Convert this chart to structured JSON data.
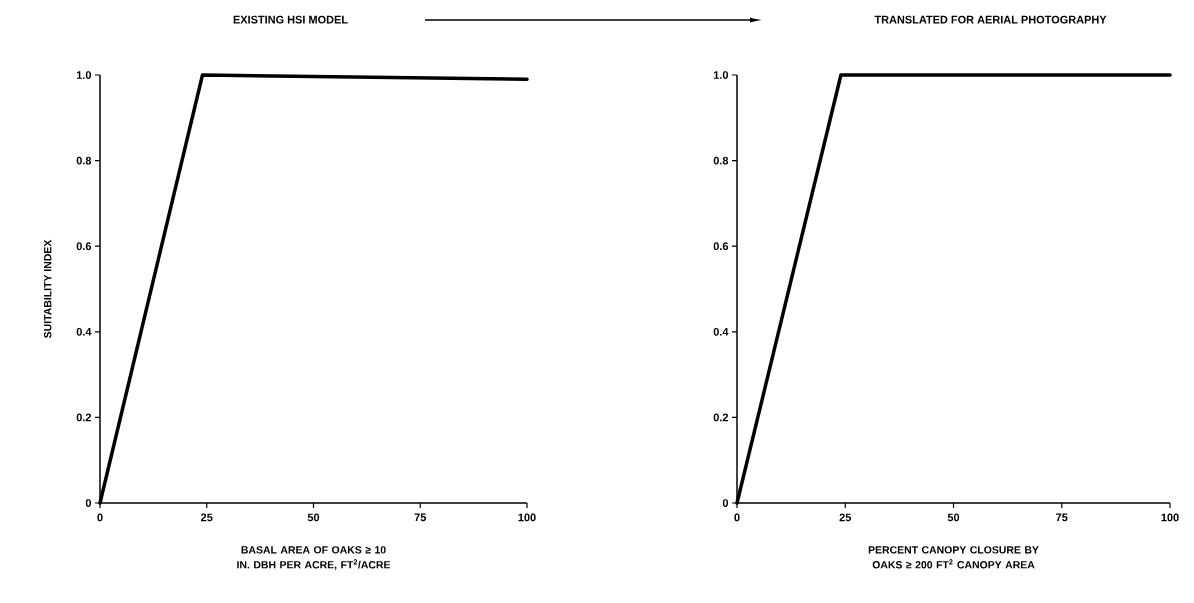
{
  "chart_data": [
    {
      "type": "line",
      "title": "EXISTING HSI MODEL",
      "xlabel": "BASAL AREA OF OAKS ≥ 10 IN. DBH PER ACRE, FT$^{2}$/ACRE",
      "ylabel": "SUITABILITY INDEX",
      "x": [
        0,
        24,
        100
      ],
      "values": [
        0,
        1.0,
        0.99
      ],
      "color": "#000000",
      "xlim": [
        0,
        100
      ],
      "ylim": [
        0,
        1.0
      ],
      "xticks": [
        0,
        25,
        50,
        75,
        100
      ],
      "yticks": [
        0,
        0.2,
        0.4,
        0.6,
        0.8,
        {
          "value": 1.0,
          "label": "1.0"
        }
      ]
    },
    {
      "type": "line",
      "title": "TRANSLATED FOR AERIAL PHOTOGRAPHY",
      "xlabel": "PERCENT CANOPY CLOSURE BY OAKS ≥ 200 FT$^{2}$ CANOPY AREA",
      "x": [
        0,
        24,
        100
      ],
      "values": [
        0,
        1.0,
        1.0
      ],
      "color": "#000000",
      "xlim": [
        0,
        100
      ],
      "ylim": [
        0,
        1.0
      ],
      "xticks": [
        0,
        25,
        50,
        75,
        100
      ],
      "yticks": [
        0,
        0.2,
        0.4,
        0.6,
        0.8,
        {
          "value": 1.0,
          "label": "1.0"
        }
      ]
    }
  ]
}
